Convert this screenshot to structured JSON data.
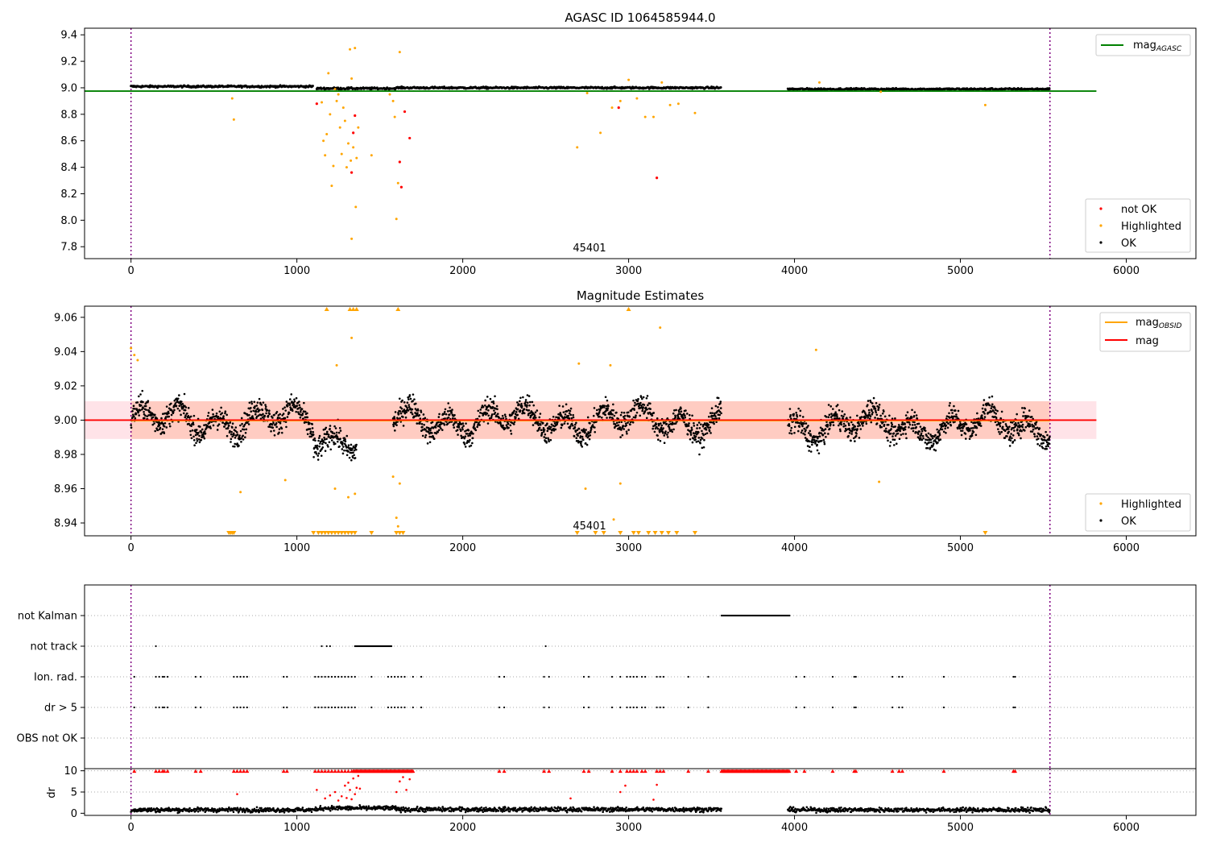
{
  "chart_data": [
    {
      "type": "scatter",
      "title": "AGASC ID 1064585944.0",
      "xlim": [
        -280,
        6420
      ],
      "ylim": [
        7.71,
        9.45
      ],
      "x_ticks": [
        0,
        1000,
        2000,
        3000,
        4000,
        5000,
        6000
      ],
      "y_ticks": [
        7.8,
        8.0,
        8.2,
        8.4,
        8.6,
        8.8,
        9.0,
        9.2,
        9.4
      ],
      "y_tick_labels": [
        "7.8",
        "8.0",
        "8.2",
        "8.4",
        "8.6",
        "8.8",
        "9.0",
        "9.2",
        "9.4"
      ],
      "x_tick_labels": [
        "0",
        "1000",
        "2000",
        "3000",
        "4000",
        "5000",
        "6000"
      ],
      "annotation": "45401",
      "annotation_x": 2750,
      "vlines": [
        0,
        5540
      ],
      "hline": {
        "y": 8.975,
        "x_range": [
          -280,
          5820
        ],
        "color": "#008000"
      },
      "legend_upper": [
        {
          "label": "mag",
          "sub": "AGASC",
          "color": "#008000"
        }
      ],
      "legend_lower": [
        {
          "label": "not OK",
          "color": "#ff0000"
        },
        {
          "label": "Highlighted",
          "color": "#ffa500"
        },
        {
          "label": "OK",
          "color": "#000000"
        }
      ],
      "highlighted_points": [
        [
          610,
          8.92
        ],
        [
          620,
          8.76
        ],
        [
          1150,
          8.89
        ],
        [
          1160,
          8.6
        ],
        [
          1170,
          8.49
        ],
        [
          1180,
          8.65
        ],
        [
          1190,
          9.11
        ],
        [
          1200,
          8.8
        ],
        [
          1210,
          8.26
        ],
        [
          1220,
          8.41
        ],
        [
          1230,
          8.99
        ],
        [
          1240,
          8.9
        ],
        [
          1250,
          8.95
        ],
        [
          1260,
          8.7
        ],
        [
          1270,
          8.5
        ],
        [
          1280,
          8.85
        ],
        [
          1290,
          8.75
        ],
        [
          1300,
          8.4
        ],
        [
          1310,
          8.58
        ],
        [
          1320,
          9.29
        ],
        [
          1325,
          8.45
        ],
        [
          1330,
          9.07
        ],
        [
          1340,
          8.55
        ],
        [
          1350,
          9.3
        ],
        [
          1355,
          8.1
        ],
        [
          1360,
          8.47
        ],
        [
          1370,
          8.7
        ],
        [
          1330,
          7.86
        ],
        [
          1450,
          8.49
        ],
        [
          1560,
          8.95
        ],
        [
          1580,
          8.9
        ],
        [
          1590,
          8.78
        ],
        [
          1600,
          8.01
        ],
        [
          1610,
          8.28
        ],
        [
          1620,
          9.27
        ],
        [
          2690,
          8.55
        ],
        [
          2750,
          8.96
        ],
        [
          2830,
          8.66
        ],
        [
          2900,
          8.85
        ],
        [
          2950,
          8.9
        ],
        [
          3000,
          9.06
        ],
        [
          3050,
          8.92
        ],
        [
          3100,
          8.78
        ],
        [
          3150,
          8.78
        ],
        [
          3200,
          9.04
        ],
        [
          3250,
          8.87
        ],
        [
          3300,
          8.88
        ],
        [
          3400,
          8.81
        ],
        [
          4150,
          9.04
        ],
        [
          4520,
          8.97
        ],
        [
          5150,
          8.87
        ]
      ],
      "notok_points": [
        [
          1120,
          8.88
        ],
        [
          1340,
          8.66
        ],
        [
          1330,
          8.36
        ],
        [
          1350,
          8.79
        ],
        [
          1620,
          8.44
        ],
        [
          1630,
          8.25
        ],
        [
          1680,
          8.62
        ],
        [
          1650,
          8.82
        ],
        [
          2940,
          8.85
        ],
        [
          3170,
          8.32
        ]
      ],
      "ok_segments": [
        [
          0,
          1100,
          9.01
        ],
        [
          1120,
          1600,
          8.995
        ],
        [
          1600,
          3560,
          9.0
        ],
        [
          3960,
          5540,
          8.99
        ]
      ]
    },
    {
      "type": "scatter",
      "title": "Magnitude Estimates",
      "xlim": [
        -280,
        6420
      ],
      "ylim": [
        8.9325,
        9.0665
      ],
      "x_ticks": [
        0,
        1000,
        2000,
        3000,
        4000,
        5000,
        6000
      ],
      "x_tick_labels": [
        "0",
        "1000",
        "2000",
        "3000",
        "4000",
        "5000",
        "6000"
      ],
      "y_ticks": [
        8.94,
        8.96,
        8.98,
        9.0,
        9.02,
        9.04,
        9.06
      ],
      "y_tick_labels": [
        "8.94",
        "8.96",
        "8.98",
        "9.00",
        "9.02",
        "9.04",
        "9.06"
      ],
      "annotation": "45401",
      "annotation_x": 2750,
      "vlines": [
        0,
        5540
      ],
      "band": {
        "y0": 8.989,
        "y1": 9.011,
        "x_range": [
          -280,
          5820
        ]
      },
      "mag_line": {
        "y": 9.0,
        "x_range": [
          -280,
          5820
        ],
        "color": "#ff0000"
      },
      "obsid_line": {
        "y": 8.9995,
        "x_range": [
          0,
          5540
        ],
        "color": "#ffa500"
      },
      "legend_upper": [
        {
          "label": "mag",
          "sub": "OBSID",
          "color": "#ffa500"
        },
        {
          "label": "mag",
          "sub": "",
          "color": "#ff0000"
        }
      ],
      "legend_lower": [
        {
          "label": "Highlighted",
          "color": "#ffa500"
        },
        {
          "label": "OK",
          "color": "#000000"
        }
      ],
      "highlighted_points": [
        [
          0,
          9.042
        ],
        [
          20,
          9.038
        ],
        [
          40,
          9.035
        ],
        [
          660,
          8.958
        ],
        [
          930,
          8.965
        ],
        [
          1230,
          8.96
        ],
        [
          1240,
          9.032
        ],
        [
          1310,
          8.955
        ],
        [
          1330,
          9.048
        ],
        [
          1350,
          8.957
        ],
        [
          1580,
          8.967
        ],
        [
          1600,
          8.943
        ],
        [
          1610,
          8.938
        ],
        [
          1620,
          8.963
        ],
        [
          2700,
          9.033
        ],
        [
          2740,
          8.96
        ],
        [
          2890,
          9.032
        ],
        [
          2910,
          8.942
        ],
        [
          2950,
          8.963
        ],
        [
          3190,
          9.054
        ],
        [
          4130,
          9.041
        ],
        [
          4510,
          8.964
        ]
      ],
      "triangles_up": [
        1180,
        1320,
        1340,
        1360,
        1610,
        3000
      ],
      "triangles_down": [
        590,
        600,
        610,
        620,
        1100,
        1130,
        1150,
        1170,
        1190,
        1210,
        1230,
        1250,
        1270,
        1290,
        1310,
        1330,
        1350,
        1450,
        1600,
        1620,
        1640,
        2690,
        2800,
        2850,
        2950,
        3030,
        3060,
        3120,
        3160,
        3200,
        3240,
        3290,
        3400,
        5150
      ],
      "ok_segments": [
        [
          0,
          1100,
          9.0
        ],
        [
          1100,
          1360,
          8.99
        ],
        [
          1580,
          3560,
          9.0
        ],
        [
          3960,
          5540,
          8.997
        ]
      ]
    },
    {
      "type": "scatter",
      "title": "",
      "xlim": [
        -280,
        6420
      ],
      "x_ticks": [
        0,
        1000,
        2000,
        3000,
        4000,
        5000,
        6000
      ],
      "x_tick_labels": [
        "0",
        "1000",
        "2000",
        "3000",
        "4000",
        "5000",
        "6000"
      ],
      "categories": [
        "not Kalman",
        "not track",
        "Ion. rad.",
        "dr > 5",
        "OBS not OK"
      ],
      "vlines": [
        0,
        5540
      ],
      "not_kalman": [
        [
          3560,
          3970
        ]
      ],
      "not_track_points": [
        150,
        1150,
        1180,
        1200,
        2500
      ],
      "not_track_dense": [
        [
          1350,
          1570
        ]
      ],
      "ion_rad_points": [
        20,
        150,
        170,
        190,
        200,
        220,
        390,
        420,
        620,
        640,
        660,
        680,
        700,
        920,
        940,
        1110,
        1130,
        1150,
        1170,
        1190,
        1210,
        1230,
        1250,
        1270,
        1290,
        1310,
        1330,
        1350,
        1450,
        1550,
        1570,
        1590,
        1610,
        1630,
        1650,
        1700,
        1750,
        2220,
        2250,
        2490,
        2520,
        2730,
        2760,
        2900,
        2950,
        2990,
        3010,
        3030,
        3050,
        3080,
        3100,
        3170,
        3190,
        3210,
        3360,
        3480,
        4010,
        4060,
        4230,
        4360,
        4370,
        4590,
        4630,
        4650,
        4900,
        5320,
        5330
      ],
      "dr5_points": [
        20,
        150,
        170,
        190,
        200,
        220,
        390,
        420,
        620,
        640,
        660,
        680,
        700,
        920,
        940,
        1110,
        1130,
        1150,
        1170,
        1190,
        1210,
        1230,
        1250,
        1270,
        1290,
        1310,
        1330,
        1350,
        1450,
        1550,
        1570,
        1590,
        1610,
        1630,
        1650,
        1700,
        1750,
        2220,
        2250,
        2490,
        2520,
        2730,
        2760,
        2900,
        2950,
        2990,
        3010,
        3030,
        3050,
        3080,
        3100,
        3170,
        3190,
        3210,
        3360,
        3480,
        4010,
        4060,
        4230,
        4360,
        4370,
        4590,
        4630,
        4650,
        4900,
        5320,
        5330
      ]
    },
    {
      "type": "scatter",
      "title": "",
      "ylabel": "dr",
      "xlim": [
        -280,
        6420
      ],
      "ylim": [
        -0.5,
        10.5
      ],
      "x_ticks": [
        0,
        1000,
        2000,
        3000,
        4000,
        5000,
        6000
      ],
      "x_tick_labels": [
        "0",
        "1000",
        "2000",
        "3000",
        "4000",
        "5000",
        "6000"
      ],
      "y_ticks": [
        0,
        5,
        10
      ],
      "y_tick_labels": [
        "0",
        "5",
        "10"
      ],
      "vlines": [
        0,
        5540
      ],
      "red_top_x": [
        20,
        150,
        170,
        190,
        200,
        220,
        390,
        420,
        620,
        640,
        660,
        680,
        700,
        920,
        940,
        1110,
        1130,
        1150,
        1170,
        1190,
        1210,
        1230,
        1250,
        1270,
        1290,
        1310,
        1330,
        2220,
        2250,
        2490,
        2520,
        2730,
        2760,
        2900,
        2950,
        2990,
        3010,
        3030,
        3050,
        3080,
        3100,
        3170,
        3190,
        3210,
        3360,
        3480,
        4010,
        4060,
        4230,
        4360,
        4370,
        4590,
        4630,
        4650,
        4900,
        5320,
        5330
      ],
      "red_top_dense": [
        [
          1340,
          1700
        ],
        [
          3560,
          3970
        ]
      ],
      "red_points": [
        [
          640,
          4.5
        ],
        [
          1120,
          5.5
        ],
        [
          1170,
          3.5
        ],
        [
          1200,
          4.2
        ],
        [
          1230,
          5.0
        ],
        [
          1250,
          3.0
        ],
        [
          1270,
          4.0
        ],
        [
          1290,
          6.5
        ],
        [
          1300,
          3.6
        ],
        [
          1310,
          7.2
        ],
        [
          1320,
          5.5
        ],
        [
          1330,
          3.3
        ],
        [
          1340,
          8.2
        ],
        [
          1350,
          4.5
        ],
        [
          1360,
          6.0
        ],
        [
          1370,
          8.8
        ],
        [
          1380,
          5.8
        ],
        [
          1600,
          5.0
        ],
        [
          1620,
          7.5
        ],
        [
          1640,
          8.5
        ],
        [
          1660,
          5.5
        ],
        [
          1680,
          8.0
        ],
        [
          2650,
          3.5
        ],
        [
          2950,
          5.0
        ],
        [
          2980,
          6.5
        ],
        [
          3150,
          3.2
        ],
        [
          3170,
          6.7
        ]
      ],
      "ok_segments": [
        [
          0,
          1130,
          0.8
        ],
        [
          1130,
          1600,
          1.2
        ],
        [
          1600,
          3560,
          0.9
        ],
        [
          3960,
          5540,
          0.8
        ]
      ]
    }
  ]
}
